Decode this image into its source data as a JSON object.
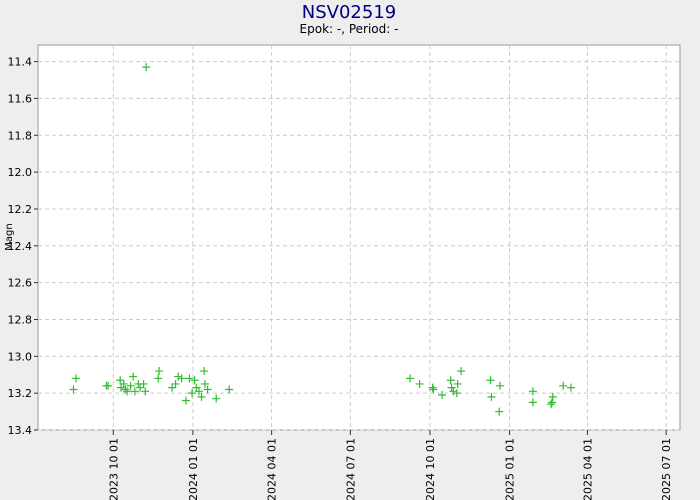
{
  "chart_data": {
    "type": "scatter",
    "title": "NSV02519",
    "subtitle": "Epok: -, Period: -",
    "y_label": "Magn",
    "color": "#33bb33",
    "grid": true,
    "y_inverted": true,
    "ylim": [
      11.31,
      13.4
    ],
    "yticks": [
      {
        "value": 11.4,
        "label": "11.4"
      },
      {
        "value": 11.6,
        "label": "11.6"
      },
      {
        "value": 11.8,
        "label": "11.8"
      },
      {
        "value": 12.0,
        "label": "12.0"
      },
      {
        "value": 12.2,
        "label": "12.2"
      },
      {
        "value": 12.4,
        "label": "12.4"
      },
      {
        "value": 12.6,
        "label": "12.6"
      },
      {
        "value": 12.8,
        "label": "12.8"
      },
      {
        "value": 13.0,
        "label": "13.0"
      },
      {
        "value": 13.2,
        "label": "13.2"
      },
      {
        "value": 13.4,
        "label": "13.4"
      }
    ],
    "xlim": [
      "2023-07-06",
      "2025-07-17"
    ],
    "xticks": [
      {
        "value": "2023-10-01",
        "label": "2023 10 01"
      },
      {
        "value": "2024-01-01",
        "label": "2024 01 01"
      },
      {
        "value": "2024-04-01",
        "label": "2024 04 01"
      },
      {
        "value": "2024-07-01",
        "label": "2024 07 01"
      },
      {
        "value": "2024-10-01",
        "label": "2024 10 01"
      },
      {
        "value": "2025-01-01",
        "label": "2025 01 01"
      },
      {
        "value": "2025-04-01",
        "label": "2025 04 01"
      },
      {
        "value": "2025-07-01",
        "label": "2025 07 01"
      }
    ],
    "x": [
      "2023-08-16",
      "2023-08-19",
      "2023-09-23",
      "2023-09-25",
      "2023-10-09",
      "2023-10-10",
      "2023-10-13",
      "2023-10-15",
      "2023-10-17",
      "2023-10-21",
      "2023-10-24",
      "2023-10-26",
      "2023-10-30",
      "2023-11-01",
      "2023-11-05",
      "2023-11-07",
      "2023-11-08",
      "2023-11-22",
      "2023-11-23",
      "2023-12-08",
      "2023-12-12",
      "2023-12-15",
      "2023-12-19",
      "2023-12-24",
      "2023-12-28",
      "2023-12-31",
      "2024-01-03",
      "2024-01-05",
      "2024-01-08",
      "2024-01-11",
      "2024-01-14",
      "2024-01-15",
      "2024-01-18",
      "2024-01-28",
      "2024-02-12",
      "2024-09-08",
      "2024-09-19",
      "2024-10-04",
      "2024-10-05",
      "2024-10-15",
      "2024-10-25",
      "2024-10-26",
      "2024-10-28",
      "2024-11-01",
      "2024-11-02",
      "2024-11-06",
      "2024-12-10",
      "2024-12-11",
      "2024-12-21",
      "2024-12-20",
      "2025-01-28",
      "2025-01-28",
      "2025-02-18",
      "2025-02-19",
      "2025-02-20",
      "2025-03-04",
      "2025-03-13"
    ],
    "values": [
      13.18,
      13.12,
      13.16,
      13.16,
      13.13,
      13.17,
      13.15,
      13.18,
      13.19,
      13.16,
      13.11,
      13.19,
      13.15,
      13.17,
      13.15,
      13.19,
      11.43,
      13.12,
      13.08,
      13.17,
      13.15,
      13.11,
      13.12,
      13.24,
      13.12,
      13.2,
      13.13,
      13.17,
      13.19,
      13.22,
      13.08,
      13.15,
      13.18,
      13.23,
      13.18,
      13.12,
      13.15,
      13.17,
      13.18,
      13.21,
      13.13,
      13.17,
      13.19,
      13.2,
      13.15,
      13.08,
      13.13,
      13.22,
      13.16,
      13.3,
      13.19,
      13.25,
      13.26,
      13.25,
      13.22,
      13.16,
      13.17
    ]
  }
}
